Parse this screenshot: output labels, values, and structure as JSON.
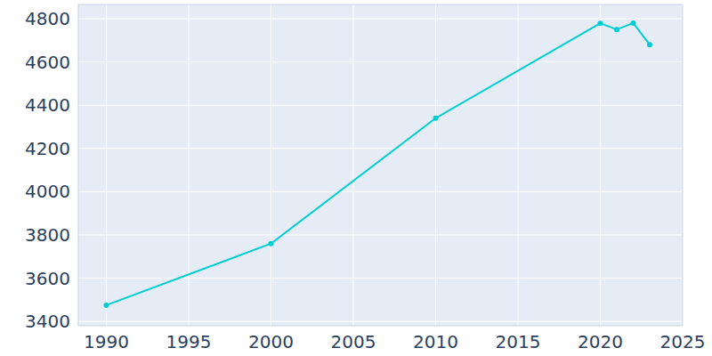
{
  "chart_data": {
    "type": "line",
    "x": [
      1990,
      2000,
      2010,
      2020,
      2021,
      2022,
      2023
    ],
    "values": [
      3475,
      3760,
      4340,
      4779,
      4750,
      4780,
      4680
    ],
    "color": "#00ced1",
    "marker": "circle",
    "xlim": [
      1988.3,
      2025
    ],
    "xticks": [
      1990,
      1995,
      2000,
      2005,
      2010,
      2015,
      2020,
      2025
    ],
    "ylim": [
      3380,
      4866
    ],
    "yticks": [
      3400,
      3600,
      3800,
      4000,
      4200,
      4400,
      4600,
      4800
    ],
    "grid": true
  }
}
